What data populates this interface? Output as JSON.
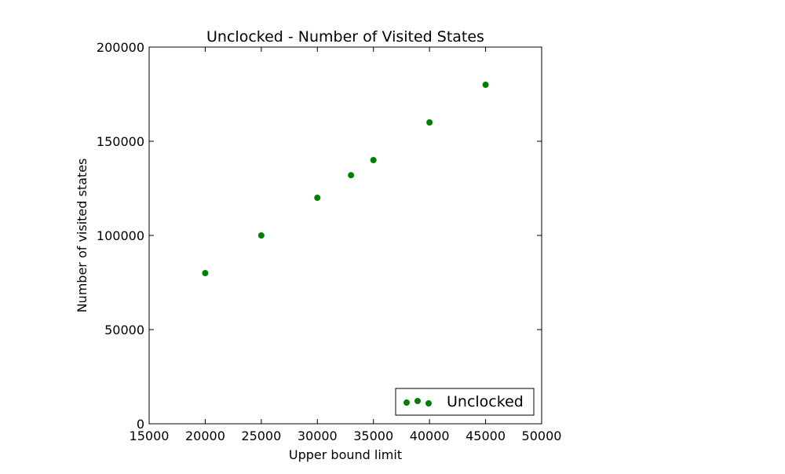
{
  "chart_data": {
    "type": "scatter",
    "title": "Unclocked - Number of Visited States",
    "xlabel": "Upper bound limit",
    "ylabel": "Number of visited states",
    "xlim": [
      15000,
      50000
    ],
    "ylim": [
      0,
      200000
    ],
    "xticks": [
      15000,
      20000,
      25000,
      30000,
      35000,
      40000,
      45000,
      50000
    ],
    "yticks": [
      0,
      50000,
      100000,
      150000,
      200000
    ],
    "xtick_labels": [
      "15000",
      "20000",
      "25000",
      "30000",
      "35000",
      "40000",
      "45000",
      "50000"
    ],
    "ytick_labels": [
      "0",
      "50000",
      "100000",
      "150000",
      "200000"
    ],
    "grid": false,
    "legend_position": "bottom-right",
    "series": [
      {
        "name": "Unclocked",
        "color": "#008000",
        "marker": "circle",
        "x": [
          20000,
          25000,
          30000,
          33000,
          35000,
          40000,
          45000
        ],
        "y": [
          80000,
          100000,
          120000,
          132000,
          140000,
          160000,
          180000
        ]
      }
    ]
  }
}
